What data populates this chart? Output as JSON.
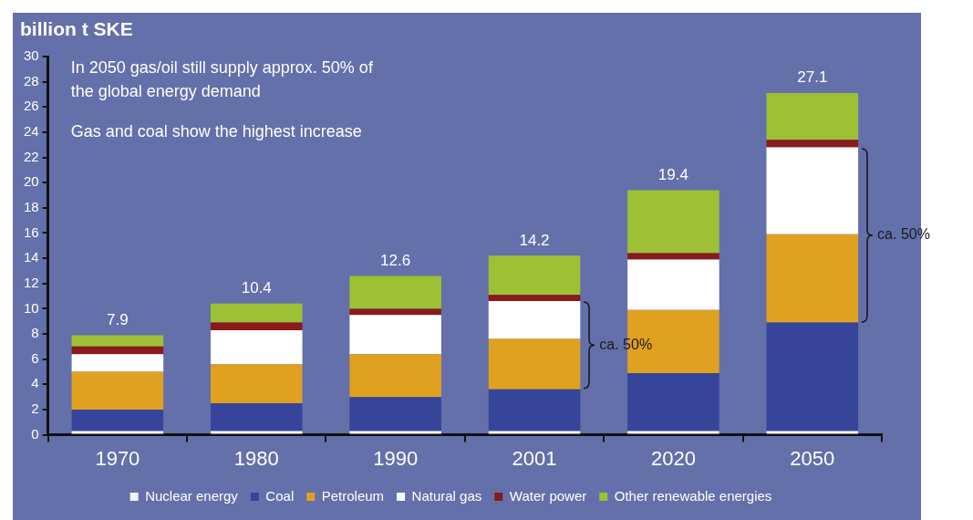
{
  "chart_data": {
    "type": "bar",
    "stacked": true,
    "ylabel": "billion t SKE",
    "categories": [
      "1970",
      "1980",
      "1990",
      "2001",
      "2020",
      "2050"
    ],
    "series": [
      {
        "name": "Nuclear energy",
        "color": "#f2f2f2",
        "values": [
          0.3,
          0.3,
          0.3,
          0.3,
          0.3,
          0.3
        ]
      },
      {
        "name": "Coal",
        "color": "#36459a",
        "values": [
          1.7,
          2.2,
          2.7,
          3.3,
          4.6,
          8.6
        ]
      },
      {
        "name": "Petroleum",
        "color": "#e0a020",
        "values": [
          3.0,
          3.1,
          3.4,
          4.0,
          5.0,
          7.0
        ]
      },
      {
        "name": "Natural gas",
        "color": "#ffffff",
        "values": [
          1.4,
          2.7,
          3.1,
          3.0,
          4.0,
          6.9
        ]
      },
      {
        "name": "Water power",
        "color": "#8b1a1a",
        "values": [
          0.6,
          0.6,
          0.5,
          0.5,
          0.5,
          0.6
        ]
      },
      {
        "name": "Other renewable energies",
        "color": "#9dc035",
        "values": [
          0.9,
          1.5,
          2.6,
          3.1,
          5.0,
          3.7
        ]
      }
    ],
    "totals": [
      "7.9",
      "10.4",
      "12.6",
      "14.2",
      "19.4",
      "27.1"
    ],
    "ylim": [
      0,
      30
    ],
    "yticks": [
      0,
      2,
      4,
      6,
      8,
      10,
      12,
      14,
      16,
      18,
      20,
      22,
      24,
      26,
      28,
      30
    ],
    "grid": false,
    "legend": "bottom",
    "annotations": [
      "In 2050 gas/oil still supply approx. 50% of\nthe global energy demand",
      "Gas and coal show the highest increase",
      "ca. 50%",
      "ca. 50%"
    ]
  }
}
